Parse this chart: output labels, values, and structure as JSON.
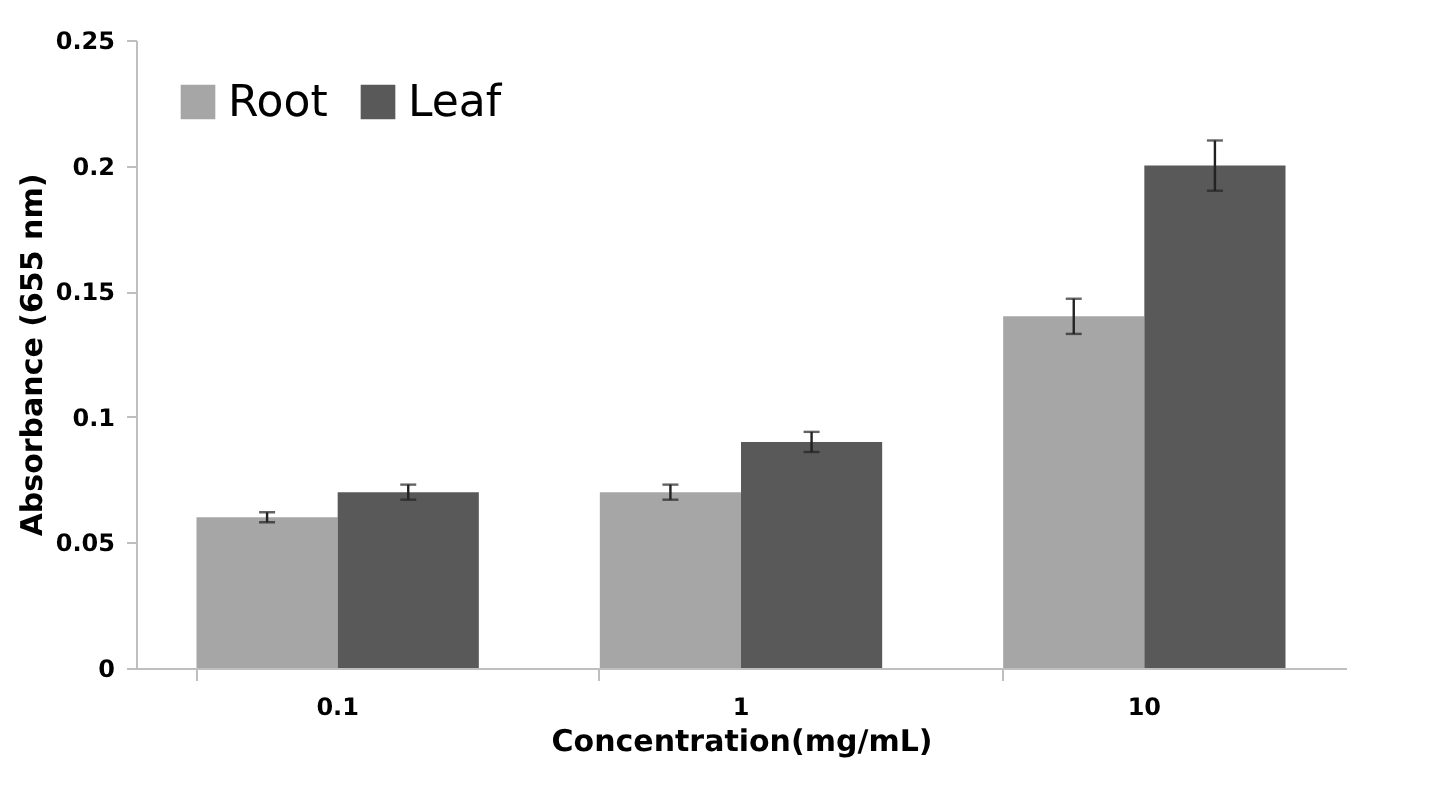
{
  "chart_data": {
    "type": "bar",
    "xlabel": "Concentration(mg/mL)",
    "ylabel": "Absorbance (655 nm)",
    "categories": [
      "0.1",
      "1",
      "10"
    ],
    "series": [
      {
        "name": "Root",
        "color": "#a6a6a6",
        "values": [
          0.06,
          0.07,
          0.14
        ],
        "errors": [
          0.002,
          0.003,
          0.007
        ]
      },
      {
        "name": "Leaf",
        "color": "#595959",
        "values": [
          0.07,
          0.09,
          0.2
        ],
        "errors": [
          0.003,
          0.004,
          0.01
        ]
      }
    ],
    "ylim": [
      0,
      0.25
    ],
    "yticks": [
      0,
      0.05,
      0.1,
      0.15,
      0.2,
      0.25
    ],
    "grid": false,
    "legend": "top left"
  }
}
